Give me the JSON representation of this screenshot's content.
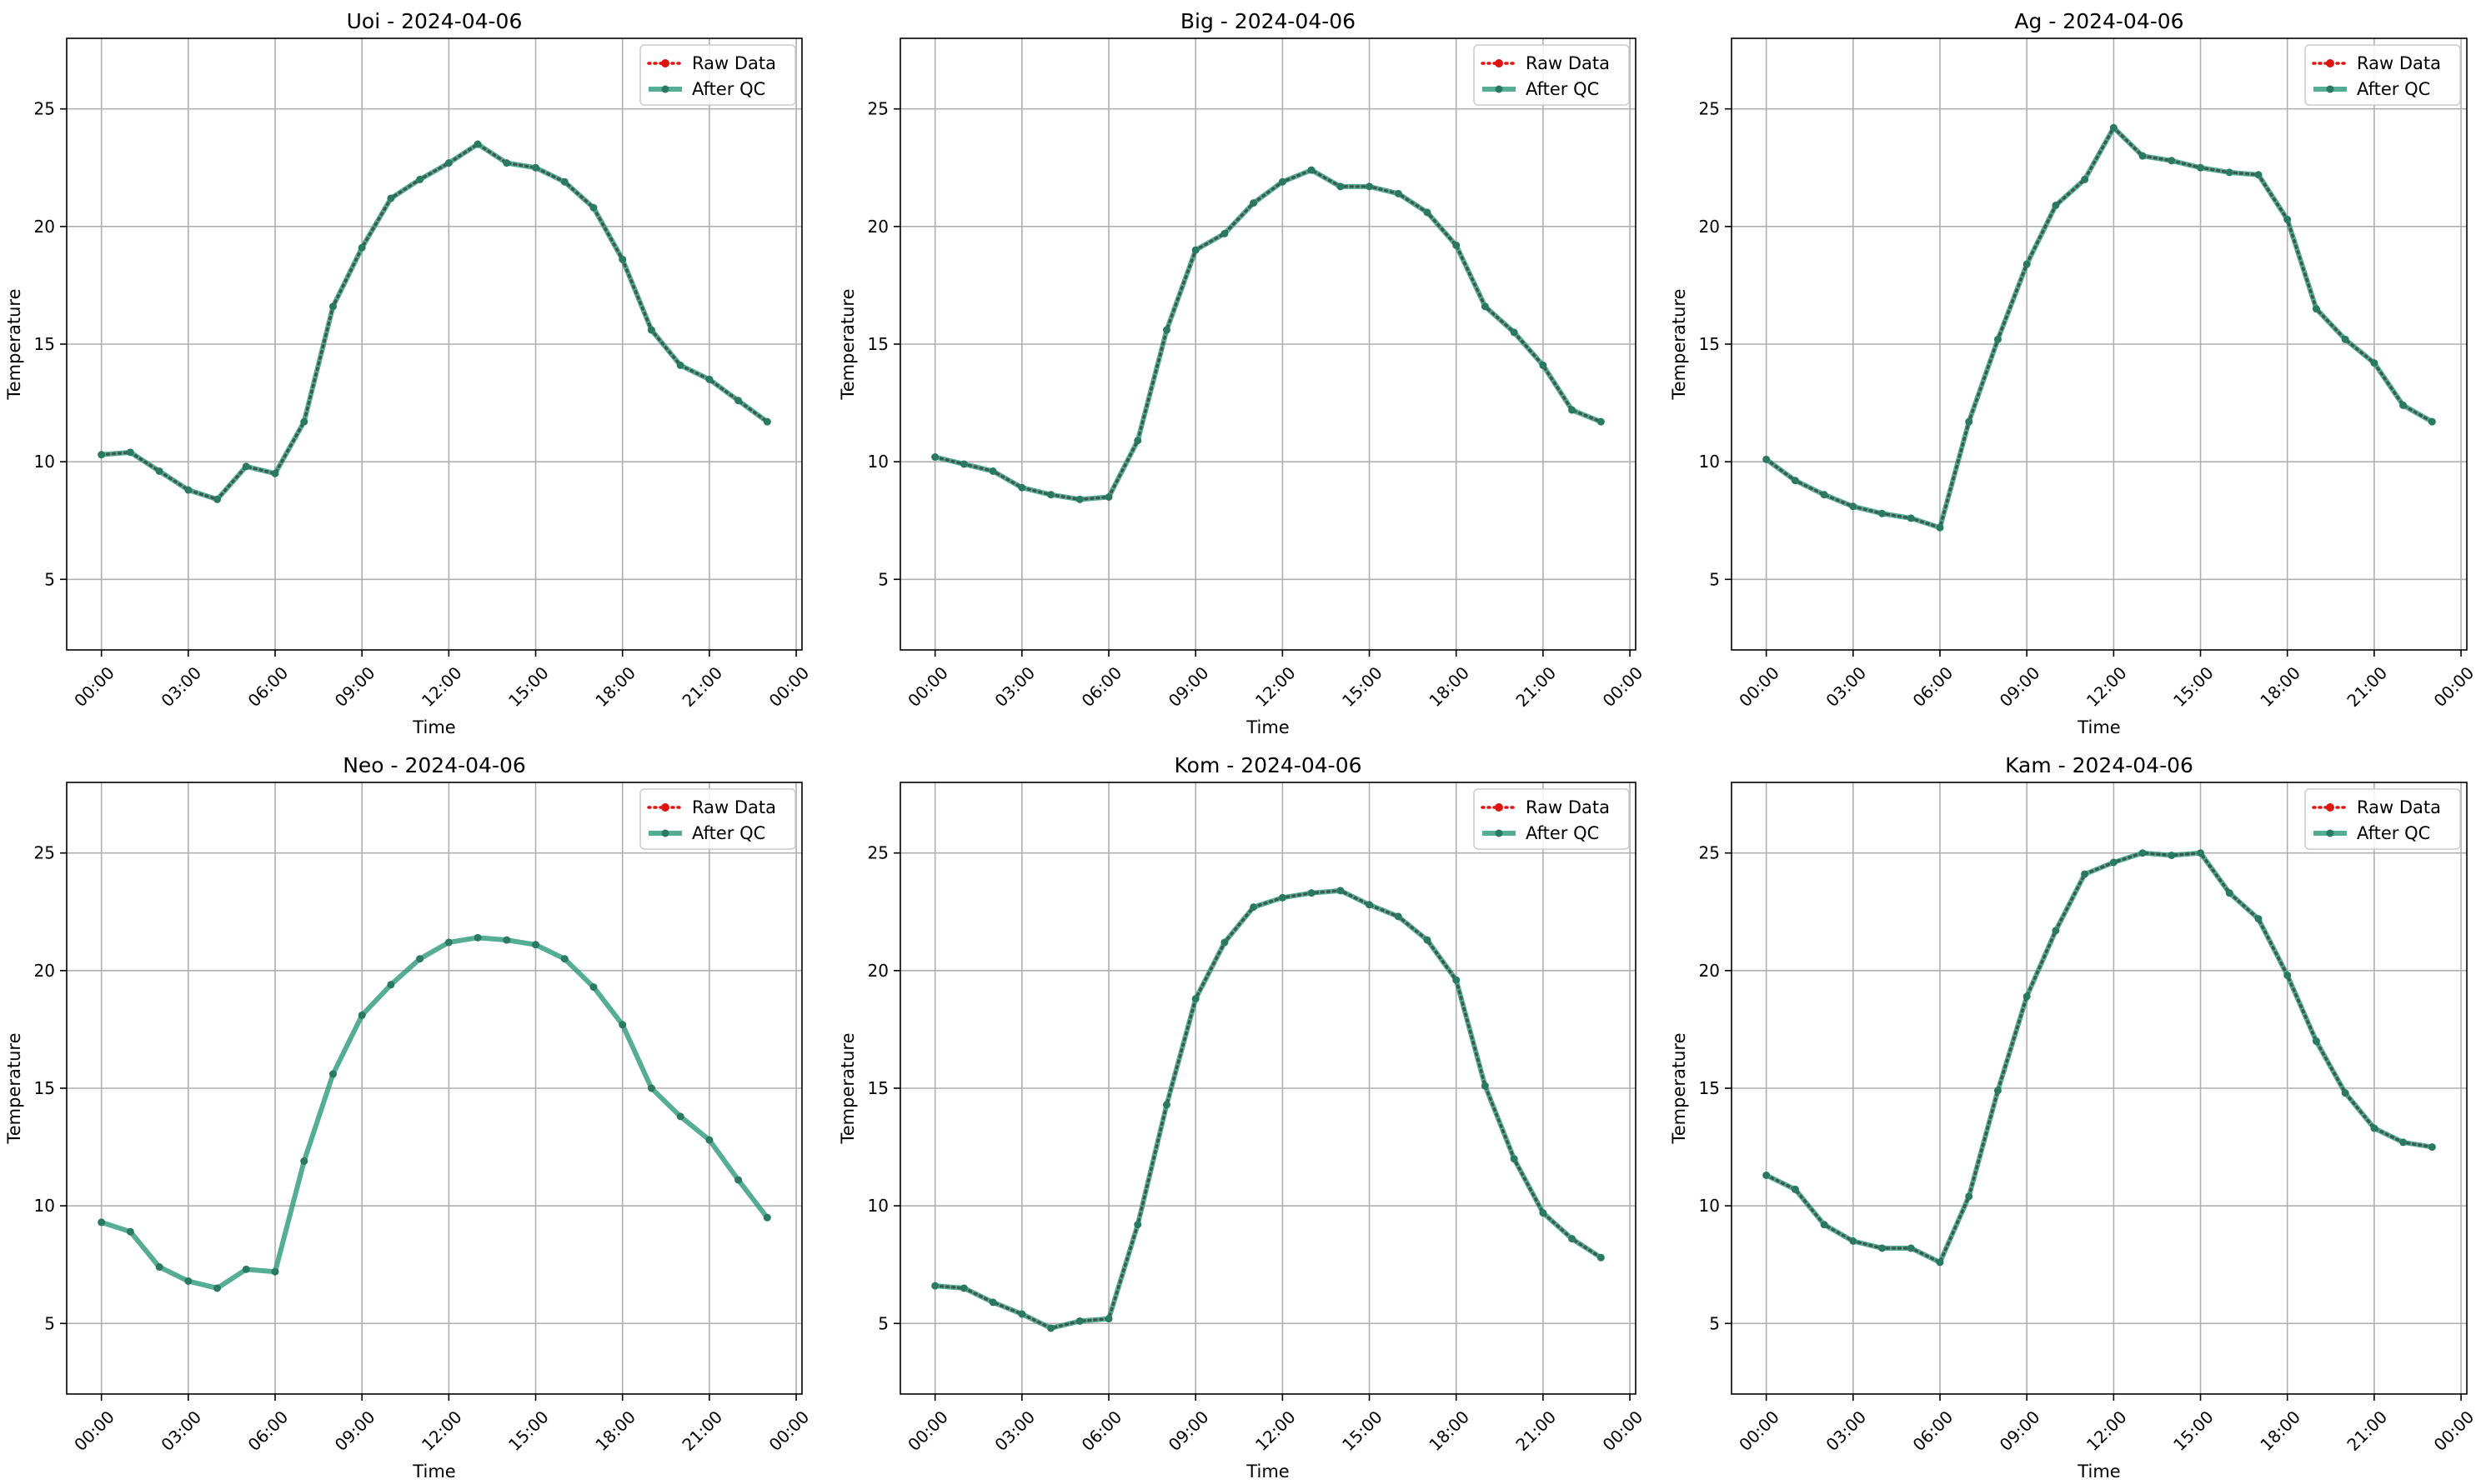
{
  "shared": {
    "xlabel": "Time",
    "ylabel": "Temperature",
    "x_tick_labels": [
      "00:00",
      "03:00",
      "06:00",
      "09:00",
      "12:00",
      "15:00",
      "18:00",
      "21:00",
      "00:00"
    ],
    "y_ticks": [
      5,
      10,
      15,
      20,
      25
    ],
    "ylim": [
      2,
      28
    ],
    "xlim_hours": [
      -1.2,
      24.2
    ],
    "grid": true,
    "legend_position": "top-right"
  },
  "series_styles": {
    "raw": {
      "name": "Raw Data",
      "color": "#e0140e",
      "style": "dotted line with circle markers"
    },
    "qc": {
      "name": "After QC",
      "color": "#2a9a78",
      "style": "solid line with small circle markers"
    }
  },
  "chart_data": [
    {
      "type": "line",
      "title": "Uoi - 2024-04-06",
      "x_hours": [
        0,
        1,
        2,
        3,
        4,
        5,
        6,
        7,
        8,
        9,
        10,
        11,
        12,
        13,
        14,
        15,
        16,
        17,
        18,
        19,
        20,
        21,
        22,
        23
      ],
      "series": [
        {
          "name": "Raw Data",
          "values": [
            10.3,
            10.4,
            9.6,
            8.8,
            8.4,
            9.8,
            9.5,
            11.7,
            16.6,
            19.1,
            21.2,
            22.0,
            22.7,
            23.5,
            22.7,
            22.5,
            21.9,
            20.8,
            18.6,
            15.6,
            14.1,
            13.5,
            12.6,
            11.7
          ]
        },
        {
          "name": "After QC",
          "values": [
            10.3,
            10.4,
            9.6,
            8.8,
            8.4,
            9.8,
            9.5,
            11.7,
            16.6,
            19.1,
            21.2,
            22.0,
            22.7,
            23.5,
            22.7,
            22.5,
            21.9,
            20.8,
            18.6,
            15.6,
            14.1,
            13.5,
            12.6,
            11.7
          ]
        }
      ]
    },
    {
      "type": "line",
      "title": "Big - 2024-04-06",
      "x_hours": [
        0,
        1,
        2,
        3,
        4,
        5,
        6,
        7,
        8,
        9,
        10,
        11,
        12,
        13,
        14,
        15,
        16,
        17,
        18,
        19,
        20,
        21,
        22,
        23
      ],
      "series": [
        {
          "name": "Raw Data",
          "values": [
            10.2,
            9.9,
            9.6,
            8.9,
            8.6,
            8.4,
            8.5,
            10.9,
            15.6,
            19.0,
            19.7,
            21.0,
            21.9,
            22.4,
            21.7,
            21.7,
            21.4,
            20.6,
            19.2,
            16.6,
            15.5,
            14.1,
            12.2,
            11.7
          ]
        },
        {
          "name": "After QC",
          "values": [
            10.2,
            9.9,
            9.6,
            8.9,
            8.6,
            8.4,
            8.5,
            10.9,
            15.6,
            19.0,
            19.7,
            21.0,
            21.9,
            22.4,
            21.7,
            21.7,
            21.4,
            20.6,
            19.2,
            16.6,
            15.5,
            14.1,
            12.2,
            11.7
          ]
        }
      ]
    },
    {
      "type": "line",
      "title": "Ag - 2024-04-06",
      "x_hours": [
        0,
        1,
        2,
        3,
        4,
        5,
        6,
        7,
        8,
        9,
        10,
        11,
        12,
        13,
        14,
        15,
        16,
        17,
        18,
        19,
        20,
        21,
        22,
        23
      ],
      "series": [
        {
          "name": "Raw Data",
          "values": [
            10.1,
            9.2,
            8.6,
            8.1,
            7.8,
            7.6,
            7.2,
            11.7,
            15.2,
            18.4,
            20.9,
            22.0,
            24.2,
            23.0,
            22.8,
            22.5,
            22.3,
            22.2,
            20.3,
            16.5,
            15.2,
            14.2,
            12.4,
            11.7
          ]
        },
        {
          "name": "After QC",
          "values": [
            10.1,
            9.2,
            8.6,
            8.1,
            7.8,
            7.6,
            7.2,
            11.7,
            15.2,
            18.4,
            20.9,
            22.0,
            24.2,
            23.0,
            22.8,
            22.5,
            22.3,
            22.2,
            20.3,
            16.5,
            15.2,
            14.2,
            12.4,
            11.7
          ]
        }
      ]
    },
    {
      "type": "line",
      "title": "Neo - 2024-04-06",
      "x_hours": [
        0,
        1,
        2,
        3,
        4,
        5,
        6,
        7,
        8,
        9,
        10,
        11,
        12,
        13,
        14,
        15,
        16,
        17,
        18,
        19,
        20,
        21,
        22,
        23
      ],
      "series": [
        {
          "name": "Raw Data",
          "values": []
        },
        {
          "name": "After QC",
          "values": [
            9.3,
            8.9,
            7.4,
            6.8,
            6.5,
            7.3,
            7.2,
            11.9,
            15.6,
            18.1,
            19.4,
            20.5,
            21.2,
            21.4,
            21.3,
            21.1,
            20.5,
            19.3,
            17.7,
            15.0,
            13.8,
            12.8,
            11.1,
            9.5
          ]
        }
      ]
    },
    {
      "type": "line",
      "title": "Kom - 2024-04-06",
      "x_hours": [
        0,
        1,
        2,
        3,
        4,
        5,
        6,
        7,
        8,
        9,
        10,
        11,
        12,
        13,
        14,
        15,
        16,
        17,
        18,
        19,
        20,
        21,
        22,
        23
      ],
      "series": [
        {
          "name": "Raw Data",
          "values": [
            6.6,
            6.5,
            5.9,
            5.4,
            4.8,
            5.1,
            5.2,
            9.2,
            14.3,
            18.8,
            21.2,
            22.7,
            23.1,
            23.3,
            23.4,
            22.8,
            22.3,
            21.3,
            19.6,
            15.1,
            12.0,
            9.7,
            8.6,
            7.8
          ]
        },
        {
          "name": "After QC",
          "values": [
            6.6,
            6.5,
            5.9,
            5.4,
            4.8,
            5.1,
            5.2,
            9.2,
            14.3,
            18.8,
            21.2,
            22.7,
            23.1,
            23.3,
            23.4,
            22.8,
            22.3,
            21.3,
            19.6,
            15.1,
            12.0,
            9.7,
            8.6,
            7.8
          ]
        }
      ]
    },
    {
      "type": "line",
      "title": "Kam - 2024-04-06",
      "x_hours": [
        0,
        1,
        2,
        3,
        4,
        5,
        6,
        7,
        8,
        9,
        10,
        11,
        12,
        13,
        14,
        15,
        16,
        17,
        18,
        19,
        20,
        21,
        22,
        23
      ],
      "series": [
        {
          "name": "Raw Data",
          "values": [
            11.3,
            10.7,
            9.2,
            8.5,
            8.2,
            8.2,
            7.6,
            10.4,
            14.9,
            18.9,
            21.7,
            24.1,
            24.6,
            25.0,
            24.9,
            25.0,
            23.3,
            22.2,
            19.8,
            17.0,
            14.8,
            13.3,
            12.7,
            12.5
          ]
        },
        {
          "name": "After QC",
          "values": [
            11.3,
            10.7,
            9.2,
            8.5,
            8.2,
            8.2,
            7.6,
            10.4,
            14.9,
            18.9,
            21.7,
            24.1,
            24.6,
            25.0,
            24.9,
            25.0,
            23.3,
            22.2,
            19.8,
            17.0,
            14.8,
            13.3,
            12.7,
            12.5
          ]
        }
      ]
    }
  ]
}
